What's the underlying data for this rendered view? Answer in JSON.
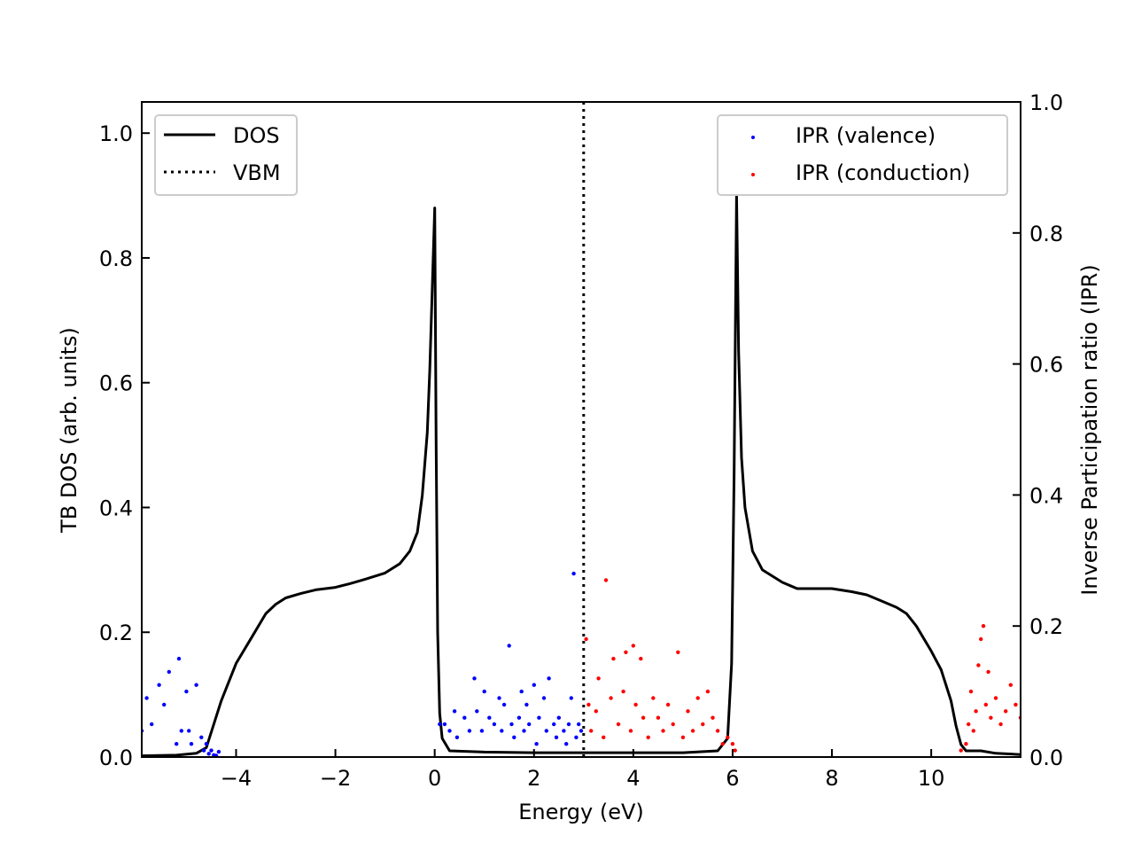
{
  "chart_data": {
    "type": "line",
    "xlabel": "Energy (eV)",
    "ylabel": "TB DOS (arb. units)",
    "y2label": "Inverse Participation ratio (IPR)",
    "xlim": [
      -5.9,
      11.8
    ],
    "ylim": [
      0.0,
      1.05
    ],
    "y2lim": [
      0.0,
      1.0
    ],
    "x_ticks": [
      -4,
      -2,
      0,
      2,
      4,
      6,
      8,
      10
    ],
    "x_tick_labels": [
      "−4",
      "−2",
      "0",
      "2",
      "4",
      "6",
      "8",
      "10"
    ],
    "y_ticks": [
      0.0,
      0.2,
      0.4,
      0.6,
      0.8,
      1.0
    ],
    "y_tick_labels": [
      "0.0",
      "0.2",
      "0.4",
      "0.6",
      "0.8",
      "1.0"
    ],
    "y2_ticks": [
      0.0,
      0.2,
      0.4,
      0.6,
      0.8,
      1.0
    ],
    "y2_tick_labels": [
      "0.0",
      "0.2",
      "0.4",
      "0.6",
      "0.8",
      "1.0"
    ],
    "grid": false,
    "vbm_x": 3.0,
    "legend_left": {
      "placement": "upper-left",
      "entries": [
        {
          "label": "DOS",
          "style": "solid"
        },
        {
          "label": "VBM",
          "style": "dotted"
        }
      ]
    },
    "legend_right": {
      "placement": "upper-right",
      "entries": [
        {
          "label": "IPR (valence)",
          "color": "#0000ff"
        },
        {
          "label": "IPR (conduction)",
          "color": "#ff0000"
        }
      ]
    },
    "dos": {
      "name": "DOS",
      "color": "#000000",
      "x": [
        -5.9,
        -5.2,
        -4.8,
        -4.6,
        -4.5,
        -4.3,
        -4.0,
        -3.7,
        -3.4,
        -3.2,
        -3.0,
        -2.7,
        -2.4,
        -2.0,
        -1.7,
        -1.4,
        -1.0,
        -0.7,
        -0.5,
        -0.35,
        -0.25,
        -0.15,
        -0.1,
        -0.05,
        0.0,
        0.03,
        0.06,
        0.1,
        0.15,
        0.3,
        1.0,
        2.0,
        3.0,
        4.0,
        5.0,
        5.7,
        5.9,
        5.98,
        6.03,
        6.08,
        6.12,
        6.18,
        6.25,
        6.4,
        6.6,
        6.8,
        7.0,
        7.3,
        7.6,
        8.0,
        8.4,
        8.7,
        9.0,
        9.3,
        9.5,
        9.7,
        10.0,
        10.2,
        10.4,
        10.5,
        10.6,
        10.7,
        11.0,
        11.3,
        11.8
      ],
      "y": [
        0.002,
        0.003,
        0.006,
        0.015,
        0.04,
        0.09,
        0.15,
        0.19,
        0.23,
        0.245,
        0.255,
        0.262,
        0.268,
        0.272,
        0.278,
        0.285,
        0.295,
        0.31,
        0.33,
        0.36,
        0.42,
        0.52,
        0.62,
        0.75,
        0.88,
        0.5,
        0.2,
        0.07,
        0.03,
        0.01,
        0.008,
        0.007,
        0.007,
        0.007,
        0.007,
        0.01,
        0.03,
        0.15,
        0.45,
        0.9,
        0.65,
        0.48,
        0.4,
        0.33,
        0.3,
        0.29,
        0.28,
        0.27,
        0.27,
        0.27,
        0.265,
        0.26,
        0.25,
        0.24,
        0.23,
        0.21,
        0.17,
        0.14,
        0.09,
        0.05,
        0.02,
        0.01,
        0.01,
        0.006,
        0.004
      ]
    },
    "ipr_valence": {
      "name": "IPR (valence)",
      "color": "#0000ff",
      "x": [
        -5.9,
        -5.8,
        -5.7,
        -5.55,
        -5.45,
        -5.35,
        -5.2,
        -5.15,
        -5.1,
        -5.0,
        -4.95,
        -4.9,
        -4.8,
        -4.7,
        -4.65,
        -4.6,
        -4.55,
        -4.5,
        -4.45,
        -4.4,
        -4.35,
        0.1,
        0.2,
        0.3,
        0.4,
        0.45,
        0.6,
        0.7,
        0.8,
        0.85,
        0.95,
        1.0,
        1.1,
        1.2,
        1.3,
        1.35,
        1.4,
        1.5,
        1.55,
        1.6,
        1.7,
        1.75,
        1.8,
        1.85,
        1.9,
        2.0,
        2.05,
        2.1,
        2.2,
        2.25,
        2.3,
        2.4,
        2.45,
        2.5,
        2.6,
        2.65,
        2.7,
        2.75,
        2.8,
        2.85,
        2.9,
        2.95
      ],
      "y": [
        0.04,
        0.09,
        0.05,
        0.11,
        0.08,
        0.13,
        0.02,
        0.15,
        0.04,
        0.1,
        0.04,
        0.02,
        0.11,
        0.03,
        0.01,
        0.02,
        0.005,
        0.01,
        0.003,
        0.002,
        0.008,
        0.05,
        0.05,
        0.04,
        0.07,
        0.03,
        0.06,
        0.04,
        0.12,
        0.07,
        0.04,
        0.1,
        0.06,
        0.05,
        0.09,
        0.04,
        0.08,
        0.17,
        0.05,
        0.03,
        0.06,
        0.1,
        0.04,
        0.08,
        0.05,
        0.11,
        0.02,
        0.06,
        0.09,
        0.04,
        0.12,
        0.05,
        0.03,
        0.06,
        0.04,
        0.02,
        0.05,
        0.09,
        0.28,
        0.03,
        0.05,
        0.04
      ]
    },
    "ipr_conduction": {
      "name": "IPR (conduction)",
      "color": "#ff0000",
      "x": [
        3.05,
        3.1,
        3.15,
        3.25,
        3.3,
        3.4,
        3.45,
        3.55,
        3.6,
        3.7,
        3.8,
        3.85,
        3.95,
        4.0,
        4.05,
        4.15,
        4.2,
        4.3,
        4.4,
        4.5,
        4.6,
        4.7,
        4.8,
        4.9,
        5.0,
        5.1,
        5.2,
        5.3,
        5.4,
        5.5,
        5.6,
        5.7,
        5.8,
        5.9,
        6.0,
        6.05,
        10.6,
        10.7,
        10.75,
        10.8,
        10.85,
        10.9,
        10.95,
        11.0,
        11.05,
        11.1,
        11.15,
        11.2,
        11.3,
        11.4,
        11.5,
        11.6,
        11.7,
        11.8
      ],
      "y": [
        0.18,
        0.08,
        0.04,
        0.07,
        0.12,
        0.03,
        0.27,
        0.09,
        0.15,
        0.05,
        0.1,
        0.16,
        0.04,
        0.17,
        0.08,
        0.15,
        0.06,
        0.03,
        0.09,
        0.06,
        0.04,
        0.08,
        0.05,
        0.16,
        0.03,
        0.07,
        0.04,
        0.09,
        0.05,
        0.1,
        0.06,
        0.04,
        0.02,
        0.03,
        0.02,
        0.01,
        0.01,
        0.02,
        0.05,
        0.1,
        0.04,
        0.07,
        0.14,
        0.18,
        0.2,
        0.08,
        0.13,
        0.06,
        0.09,
        0.05,
        0.07,
        0.11,
        0.08,
        0.06
      ]
    }
  }
}
